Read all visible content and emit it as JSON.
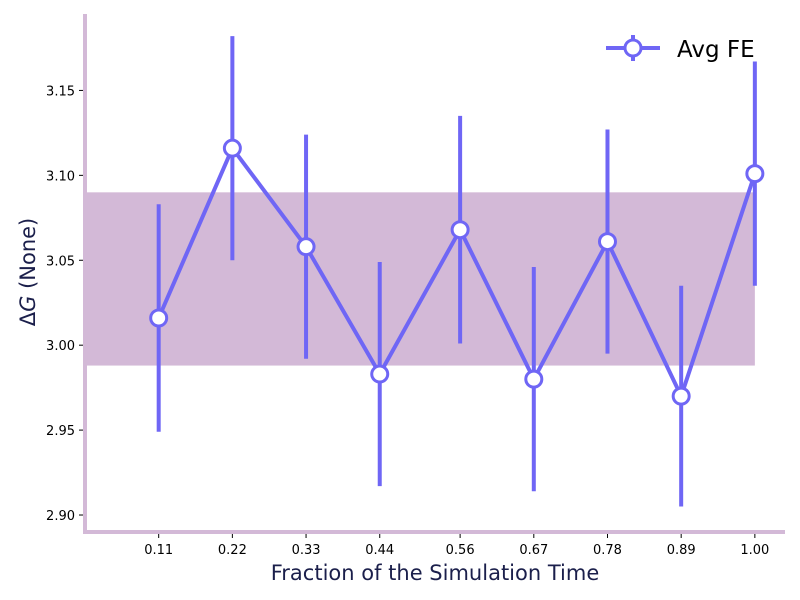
{
  "chart_data": {
    "type": "line",
    "title": "",
    "xlabel": "Fraction of the Simulation Time",
    "ylabel": "ΔG (None)",
    "ylabel_prefix": "Δ",
    "ylabel_symbol": "G",
    "ylabel_suffix": " (None)",
    "x": [
      0.11,
      0.22,
      0.33,
      0.44,
      0.56,
      0.67,
      0.78,
      0.89,
      1.0
    ],
    "x_tick_labels": [
      "0.11",
      "0.22",
      "0.33",
      "0.44",
      "0.56",
      "0.67",
      "0.78",
      "0.89",
      "1.00"
    ],
    "y_ticks": [
      2.9,
      2.95,
      3.0,
      3.05,
      3.1,
      3.15
    ],
    "y_tick_labels": [
      "2.90",
      "2.95",
      "3.00",
      "3.05",
      "3.10",
      "3.15"
    ],
    "xlim": [
      0.0,
      1.045
    ],
    "ylim": [
      2.89,
      3.195
    ],
    "series": [
      {
        "name": "Avg FE",
        "values": [
          3.016,
          3.116,
          3.058,
          2.983,
          3.068,
          2.98,
          3.061,
          2.97,
          3.101
        ],
        "error": [
          0.067,
          0.066,
          0.066,
          0.066,
          0.067,
          0.066,
          0.066,
          0.065,
          0.066
        ],
        "color": "#6f66f5"
      }
    ],
    "band": {
      "x_start": 0.0,
      "x_end": 1.0,
      "y_low": 2.988,
      "y_high": 3.09,
      "color": "#d3b9d7"
    },
    "legend_position": "top-right",
    "grid": false,
    "axis_color": "#d3b9d7"
  }
}
